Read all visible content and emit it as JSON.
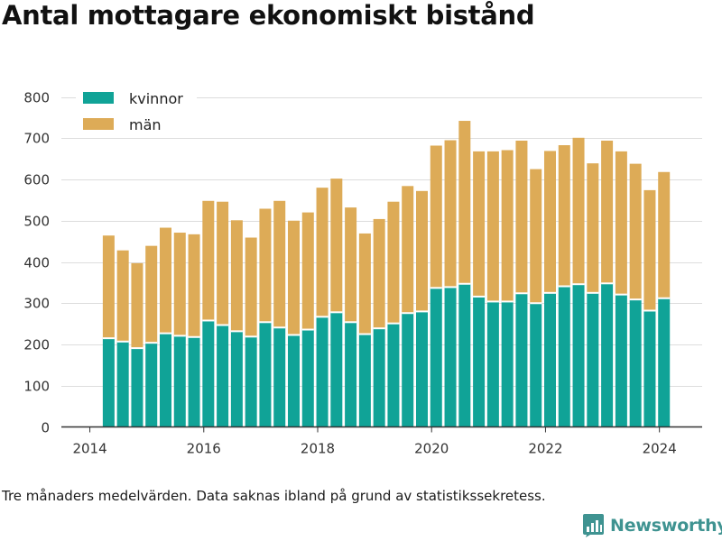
{
  "title": "Antal mottagare ekonomiskt bistånd",
  "footnote": "Tre månaders medelvärden. Data saknas ibland på grund av statistikssekretess.",
  "brand": {
    "name": "Newsworthy",
    "icon": "newsworthy-logo-icon",
    "color": "#3f9391"
  },
  "colors": {
    "kvinnor": "#10a397",
    "man": "#ddab57",
    "grid": "#dddddd",
    "axis": "#333333"
  },
  "chart_data": {
    "type": "bar",
    "stacked": true,
    "title": "Antal mottagare ekonomiskt bistånd",
    "xlabel": "",
    "ylabel": "",
    "ylim": [
      0,
      800
    ],
    "yticks": [
      0,
      100,
      200,
      300,
      400,
      500,
      600,
      700,
      800
    ],
    "xlim": [
      2013.5,
      2024.75
    ],
    "xticks": [
      2014,
      2016,
      2018,
      2020,
      2022,
      2024
    ],
    "grid": true,
    "legend_position": "top-left",
    "x": [
      2014.33,
      2014.58,
      2014.83,
      2015.08,
      2015.33,
      2015.58,
      2015.83,
      2016.08,
      2016.33,
      2016.58,
      2016.83,
      2017.08,
      2017.33,
      2017.58,
      2017.83,
      2018.08,
      2018.33,
      2018.58,
      2018.83,
      2019.08,
      2019.33,
      2019.58,
      2019.83,
      2020.08,
      2020.33,
      2020.58,
      2020.83,
      2021.08,
      2021.33,
      2021.58,
      2021.83,
      2022.08,
      2022.33,
      2022.58,
      2022.83,
      2023.08,
      2023.33,
      2023.58,
      2023.83,
      2024.08
    ],
    "series": [
      {
        "name": "kvinnor",
        "values": [
          215,
          207,
          191,
          204,
          227,
          221,
          218,
          258,
          247,
          232,
          219,
          254,
          241,
          223,
          236,
          267,
          278,
          254,
          225,
          239,
          251,
          276,
          280,
          337,
          339,
          347,
          316,
          304,
          304,
          324,
          300,
          325,
          341,
          346,
          325,
          348,
          321,
          309,
          282,
          312
        ]
      },
      {
        "name": "män",
        "values": [
          249,
          221,
          206,
          235,
          256,
          250,
          249,
          290,
          299,
          269,
          240,
          275,
          307,
          277,
          284,
          313,
          324,
          278,
          244,
          265,
          295,
          308,
          292,
          345,
          356,
          395,
          352,
          364,
          367,
          370,
          325,
          344,
          342,
          355,
          314,
          346,
          347,
          329,
          292,
          306
        ]
      }
    ]
  }
}
